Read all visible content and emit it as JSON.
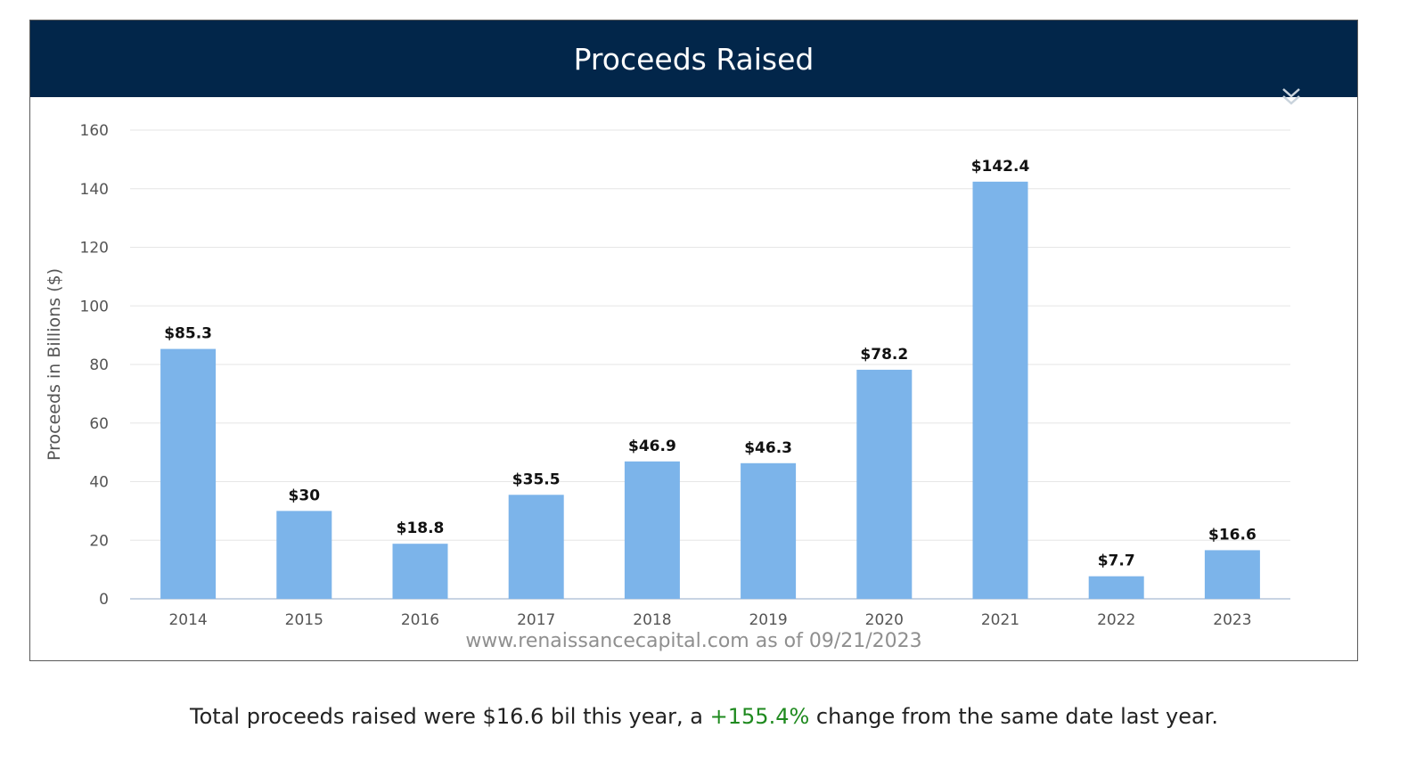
{
  "panel": {
    "title": "Proceeds Raised",
    "source": "www.renaissancecapital.com as of 09/21/2023",
    "menu_icon": "double-chevron-down-icon"
  },
  "summary": {
    "before": "Total proceeds raised were $16.6 bil this year, a ",
    "change": "+155.4%",
    "after": " change from the same date last year."
  },
  "colors": {
    "header_bg": "#02264a",
    "bar": "#7cb4ea",
    "positive": "#1f8a1f"
  },
  "chart_data": {
    "type": "bar",
    "categories": [
      "2014",
      "2015",
      "2016",
      "2017",
      "2018",
      "2019",
      "2020",
      "2021",
      "2022",
      "2023"
    ],
    "values": [
      85.3,
      30,
      18.8,
      35.5,
      46.9,
      46.3,
      78.2,
      142.4,
      7.7,
      16.6
    ],
    "data_labels": [
      "$85.3",
      "$30",
      "$18.8",
      "$35.5",
      "$46.9",
      "$46.3",
      "$78.2",
      "$142.4",
      "$7.7",
      "$16.6"
    ],
    "title": "Proceeds Raised",
    "xlabel": "",
    "ylabel": "Proceeds in Billions ($)",
    "ylim": [
      0,
      160
    ],
    "yticks": [
      0,
      20,
      40,
      60,
      80,
      100,
      120,
      140,
      160
    ],
    "grid": true,
    "legend": "none"
  }
}
